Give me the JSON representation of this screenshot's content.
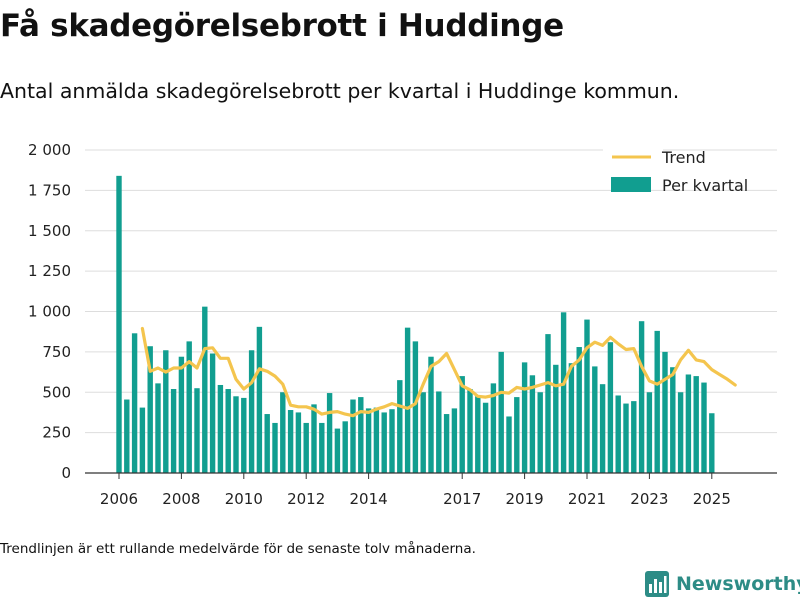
{
  "title": "Få skadegörelsebrott i Huddinge",
  "subtitle": "Antal anmälda skadegörelsebrott per kvartal i Huddinge kommun.",
  "footnote": "Trendlinjen är ett rullande medelvärde för de senaste tolv månaderna.",
  "brand": "Newsworthy",
  "colors": {
    "bar": "#119e90",
    "trend": "#f4c54e",
    "grid": "#dddddd",
    "logo": "#2d8c86"
  },
  "chart_data": {
    "type": "bar",
    "x_start": 2006.0,
    "x_step": 0.25,
    "ylim": [
      0,
      2000
    ],
    "yticks": [
      0,
      250,
      500,
      750,
      1000,
      1250,
      1500,
      1750,
      2000
    ],
    "ytick_labels": [
      "0",
      "250",
      "500",
      "750",
      "1 000",
      "1 250",
      "1 500",
      "1 750",
      "2 000"
    ],
    "xticks": [
      2006,
      2008,
      2010,
      2012,
      2014,
      2017,
      2019,
      2021,
      2023,
      2025
    ],
    "xtick_labels": [
      "2006",
      "2008",
      "2010",
      "2012",
      "2014",
      "2017",
      "2019",
      "2021",
      "2023",
      "2025"
    ],
    "grid": true,
    "legend": "top-right",
    "series": [
      {
        "name": "Per kvartal",
        "kind": "bar",
        "values": [
          1840,
          455,
          865,
          405,
          785,
          555,
          760,
          520,
          720,
          815,
          525,
          1030,
          740,
          545,
          520,
          475,
          465,
          760,
          905,
          365,
          310,
          500,
          390,
          375,
          310,
          425,
          310,
          495,
          275,
          320,
          455,
          470,
          400,
          405,
          375,
          395,
          575,
          900,
          815,
          500,
          720,
          505,
          365,
          400,
          600,
          520,
          475,
          435,
          555,
          750,
          350,
          470,
          685,
          605,
          500,
          860,
          670,
          995,
          680,
          780,
          950,
          660,
          550,
          810,
          480,
          430,
          445,
          940,
          500,
          880,
          750,
          655,
          500,
          610,
          600,
          560,
          370
        ]
      },
      {
        "name": "Trend",
        "kind": "line",
        "x_start": 2006.75,
        "values": [
          895,
          630,
          650,
          625,
          650,
          650,
          690,
          650,
          770,
          775,
          710,
          710,
          580,
          520,
          560,
          645,
          630,
          600,
          550,
          420,
          410,
          410,
          395,
          365,
          375,
          380,
          365,
          355,
          380,
          375,
          395,
          410,
          430,
          415,
          400,
          430,
          550,
          660,
          690,
          740,
          640,
          540,
          515,
          475,
          470,
          480,
          500,
          495,
          530,
          520,
          530,
          545,
          560,
          540,
          550,
          660,
          700,
          775,
          810,
          790,
          840,
          800,
          765,
          770,
          660,
          570,
          550,
          580,
          610,
          700,
          760,
          700,
          690,
          640,
          610,
          580,
          545
        ]
      }
    ]
  }
}
